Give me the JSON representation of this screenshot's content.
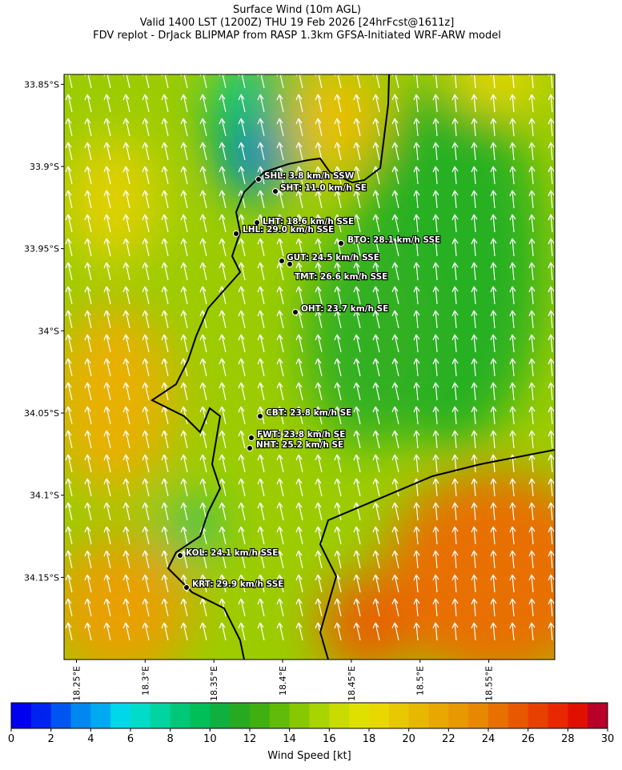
{
  "title": [
    "Surface Wind (10m AGL)",
    "Valid 1400 LST (1200Z) THU 19 Feb 2026 [24hrFcst@1611z]",
    "FDV replot - DrJack BLIPMAP from RASP 1.3km GFSA-Initiated WRF-ARW model"
  ],
  "map": {
    "lat_lim": [
      -33.844,
      -34.2
    ],
    "lon_lim": [
      18.241,
      18.598
    ],
    "lat_ticks": [
      {
        "value": -33.85,
        "label": "33.85°S"
      },
      {
        "value": -33.9,
        "label": "33.9°S"
      },
      {
        "value": -33.95,
        "label": "33.95°S"
      },
      {
        "value": -34,
        "label": "34°S"
      },
      {
        "value": -34.05,
        "label": "34.05°S"
      },
      {
        "value": -34.1,
        "label": "34.1°S"
      },
      {
        "value": -34.15,
        "label": "34.15°S"
      }
    ],
    "lon_ticks": [
      {
        "value": 18.25,
        "label": "18.25°E"
      },
      {
        "value": 18.3,
        "label": "18.3°E"
      },
      {
        "value": 18.35,
        "label": "18.35°E"
      },
      {
        "value": 18.4,
        "label": "18.4°E"
      },
      {
        "value": 18.45,
        "label": "18.45°E"
      },
      {
        "value": 18.5,
        "label": "18.5°E"
      },
      {
        "value": 18.55,
        "label": "18.55°E"
      }
    ],
    "stations": [
      {
        "label": "SHL: 3.8 km/h SSW"
      },
      {
        "label": "SHT: 11.0 km/h SE"
      },
      {
        "label": "LHT: 18.6 km/h SSE"
      },
      {
        "label": "LHL: 29.0 km/h SSE"
      },
      {
        "label": "BTO: 28.1 km/h SSE"
      },
      {
        "label": "GUT: 24.5 km/h SSE"
      },
      {
        "label": "TMT: 26.6 km/h SSE"
      },
      {
        "label": "OHT: 23.7 km/h SE"
      },
      {
        "label": "CBT: 23.8 km/h SE"
      },
      {
        "label": "FWT: 23.8 km/h SE"
      },
      {
        "label": "NHT: 25.2 km/h SE"
      },
      {
        "label": "KOL: 24.1 km/h SSE"
      },
      {
        "label": "KRT: 29.9 km/h SSE"
      }
    ]
  },
  "colorbar": {
    "label": "Wind Speed [kt]",
    "lim": [
      0,
      30
    ],
    "ticks": [
      0,
      2,
      4,
      6,
      8,
      10,
      12,
      14,
      16,
      18,
      20,
      22,
      24,
      26,
      28,
      30
    ],
    "colors": [
      "#0000f0",
      "#0022f0",
      "#0055f0",
      "#0088f0",
      "#00aaf0",
      "#00d8ea",
      "#00dcc8",
      "#00d4a0",
      "#00c878",
      "#00be58",
      "#10b040",
      "#28aa20",
      "#40b010",
      "#60bc08",
      "#88c800",
      "#a8d400",
      "#c8dc00",
      "#e0e000",
      "#e8d800",
      "#e8c800",
      "#e8b800",
      "#e8a800",
      "#e89800",
      "#e88800",
      "#e87000",
      "#e85800",
      "#e84000",
      "#e82800",
      "#e01000",
      "#b80028"
    ]
  }
}
